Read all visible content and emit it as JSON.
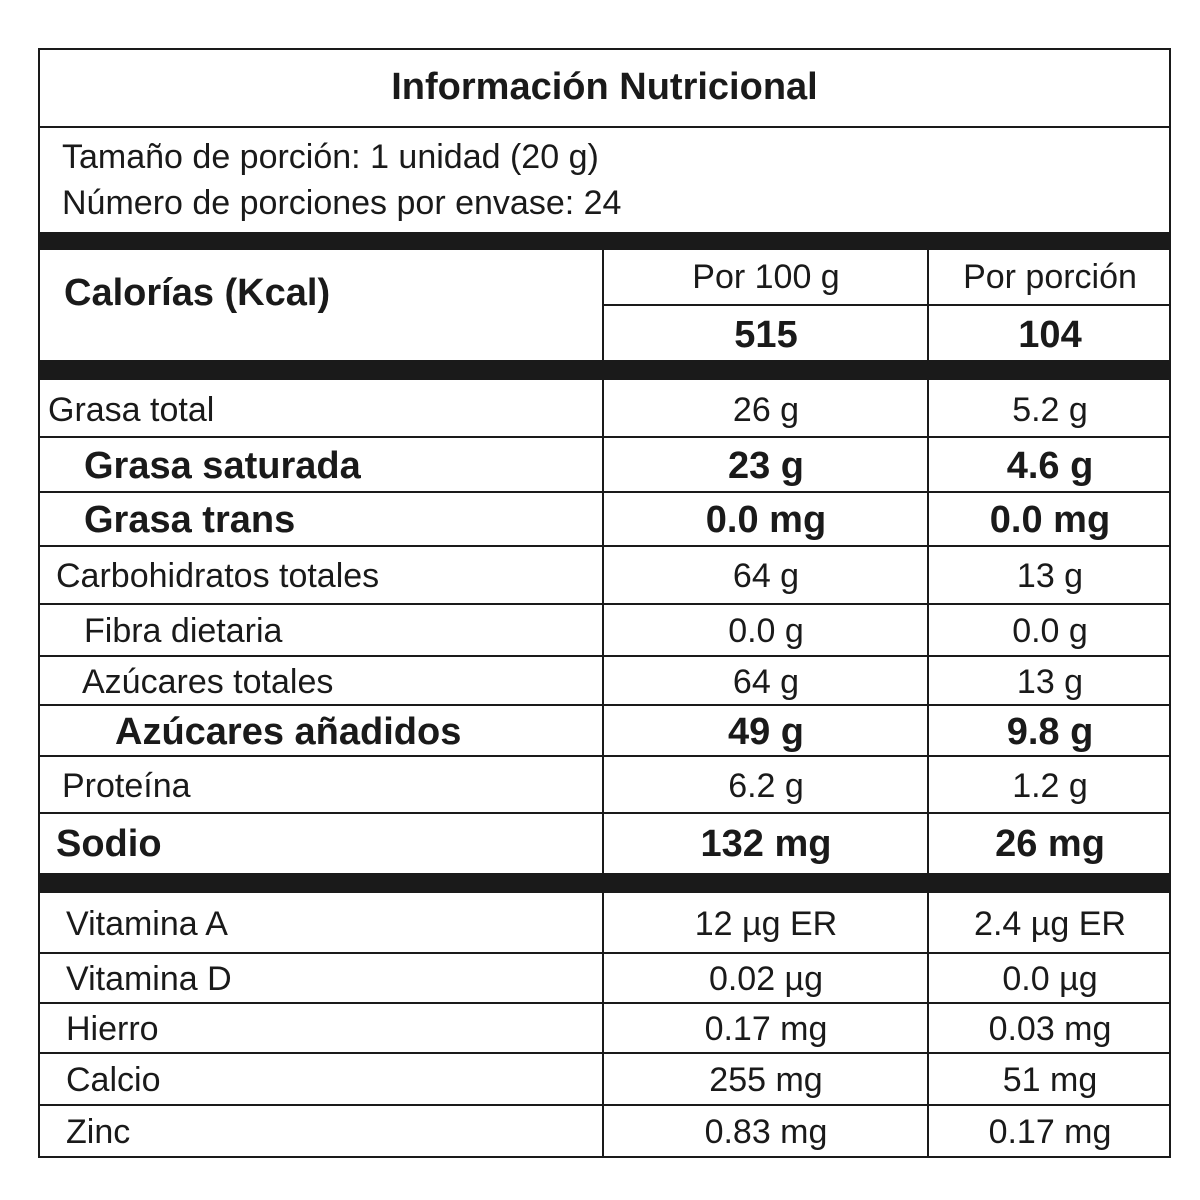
{
  "title": "Información Nutricional",
  "serving_size": "Tamaño de porción: 1 unidad (20 g)",
  "servings_per_container": "Número de porciones por envase: 24",
  "calories": {
    "label": "Calorías (Kcal)",
    "col1_header": "Por 100 g",
    "col2_header": "Por porción",
    "per_100g": "515",
    "per_serving": "104"
  },
  "nutrients": [
    {
      "name": "Grasa total",
      "per_100g": "26 g",
      "per_serving": "5.2 g",
      "bold": false
    },
    {
      "name": "Grasa saturada",
      "per_100g": "23 g",
      "per_serving": "4.6 g",
      "bold": true
    },
    {
      "name": "Grasa trans",
      "per_100g": "0.0 mg",
      "per_serving": "0.0 mg",
      "bold": true
    },
    {
      "name": "Carbohidratos totales",
      "per_100g": "64 g",
      "per_serving": "13 g",
      "bold": false
    },
    {
      "name": "Fibra dietaria",
      "per_100g": "0.0 g",
      "per_serving": "0.0 g",
      "bold": false
    },
    {
      "name": "Azúcares totales",
      "per_100g": "64 g",
      "per_serving": "13 g",
      "bold": false
    },
    {
      "name": "Azúcares añadidos",
      "per_100g": "49 g",
      "per_serving": "9.8 g",
      "bold": true
    },
    {
      "name": "Proteína",
      "per_100g": "6.2 g",
      "per_serving": "1.2 g",
      "bold": false
    },
    {
      "name": "Sodio",
      "per_100g": "132 mg",
      "per_serving": "26 mg",
      "bold": true
    }
  ],
  "micronutrients": [
    {
      "name": "Vitamina A",
      "per_100g": "12 µg ER",
      "per_serving": "2.4 µg ER"
    },
    {
      "name": "Vitamina D",
      "per_100g": "0.02 µg",
      "per_serving": "0.0 µg"
    },
    {
      "name": "Hierro",
      "per_100g": "0.17 mg",
      "per_serving": "0.03 mg"
    },
    {
      "name": "Calcio",
      "per_100g": "255 mg",
      "per_serving": "51 mg"
    },
    {
      "name": "Zinc",
      "per_100g": "0.83 mg",
      "per_serving": "0.17 mg"
    }
  ]
}
